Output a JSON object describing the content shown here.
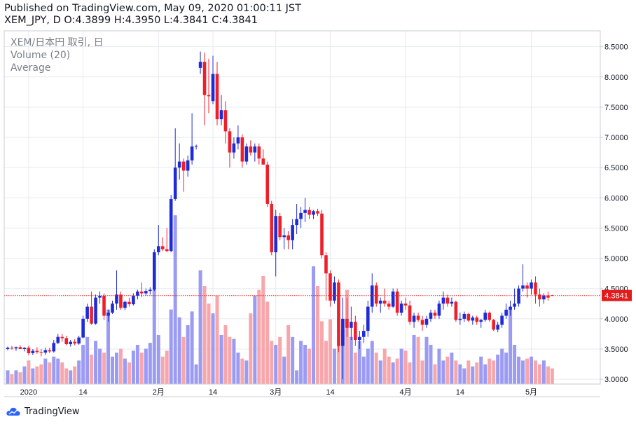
{
  "header": {
    "line1": "Published on TradingView.com, May 09, 2020 01:00:11 JST",
    "line2": "XEM_JPY, D O:4.3899 H:4.3950 L:4.3841 C:4.3841"
  },
  "legend": {
    "symbol": "XEM/日本円 取引, 日",
    "volume": "Volume (20)",
    "average": "Average"
  },
  "footer": {
    "brand": "TradingView"
  },
  "colors": {
    "up": "#1e2bd6",
    "down": "#ef1f2a",
    "vol_up": "#9b9bf4",
    "vol_down": "#f7a6ab",
    "grid": "#e6eaf0",
    "last_price": "#e21c1c"
  },
  "chart_data": {
    "type": "candlestick",
    "ylim": [
      2.92,
      8.6
    ],
    "yticks": [
      "8.5000",
      "8.0000",
      "7.5000",
      "7.0000",
      "6.5000",
      "6.0000",
      "5.5000",
      "5.0000",
      "4.5000",
      "4.0000",
      "3.5000",
      "3.0000"
    ],
    "xticks": [
      {
        "label": "2020",
        "index": 5
      },
      {
        "label": "14",
        "index": 18
      },
      {
        "label": "2月",
        "index": 36
      },
      {
        "label": "14",
        "index": 49
      },
      {
        "label": "3月",
        "index": 64
      },
      {
        "label": "14",
        "index": 77
      },
      {
        "label": "4月",
        "index": 95
      },
      {
        "label": "14",
        "index": 108
      },
      {
        "label": "5月",
        "index": 125
      }
    ],
    "last_price": "4.3841",
    "candles": [
      {
        "o": 3.5,
        "h": 3.54,
        "l": 3.48,
        "c": 3.52
      },
      {
        "o": 3.52,
        "h": 3.55,
        "l": 3.49,
        "c": 3.51
      },
      {
        "o": 3.51,
        "h": 3.54,
        "l": 3.47,
        "c": 3.53
      },
      {
        "o": 3.53,
        "h": 3.56,
        "l": 3.5,
        "c": 3.5
      },
      {
        "o": 3.5,
        "h": 3.53,
        "l": 3.46,
        "c": 3.52
      },
      {
        "o": 3.52,
        "h": 3.55,
        "l": 3.4,
        "c": 3.43
      },
      {
        "o": 3.43,
        "h": 3.5,
        "l": 3.4,
        "c": 3.47
      },
      {
        "o": 3.47,
        "h": 3.53,
        "l": 3.42,
        "c": 3.45
      },
      {
        "o": 3.45,
        "h": 3.5,
        "l": 3.38,
        "c": 3.44
      },
      {
        "o": 3.44,
        "h": 3.52,
        "l": 3.4,
        "c": 3.48
      },
      {
        "o": 3.48,
        "h": 3.52,
        "l": 3.43,
        "c": 3.46
      },
      {
        "o": 3.46,
        "h": 3.65,
        "l": 3.44,
        "c": 3.6
      },
      {
        "o": 3.6,
        "h": 3.75,
        "l": 3.58,
        "c": 3.7
      },
      {
        "o": 3.7,
        "h": 3.75,
        "l": 3.62,
        "c": 3.68
      },
      {
        "o": 3.68,
        "h": 3.72,
        "l": 3.56,
        "c": 3.58
      },
      {
        "o": 3.58,
        "h": 3.65,
        "l": 3.54,
        "c": 3.62
      },
      {
        "o": 3.62,
        "h": 3.66,
        "l": 3.56,
        "c": 3.59
      },
      {
        "o": 3.59,
        "h": 3.72,
        "l": 3.57,
        "c": 3.69
      },
      {
        "o": 3.69,
        "h": 4.05,
        "l": 3.68,
        "c": 4.0
      },
      {
        "o": 4.0,
        "h": 4.25,
        "l": 3.95,
        "c": 4.2
      },
      {
        "o": 4.2,
        "h": 4.45,
        "l": 3.9,
        "c": 3.92
      },
      {
        "o": 3.92,
        "h": 4.4,
        "l": 3.9,
        "c": 4.35
      },
      {
        "o": 4.35,
        "h": 4.45,
        "l": 4.25,
        "c": 4.38
      },
      {
        "o": 4.38,
        "h": 4.42,
        "l": 3.98,
        "c": 4.05
      },
      {
        "o": 4.05,
        "h": 4.15,
        "l": 3.95,
        "c": 4.1
      },
      {
        "o": 4.1,
        "h": 4.3,
        "l": 4.08,
        "c": 4.25
      },
      {
        "o": 4.25,
        "h": 4.8,
        "l": 4.15,
        "c": 4.4
      },
      {
        "o": 4.4,
        "h": 4.45,
        "l": 4.15,
        "c": 4.18
      },
      {
        "o": 4.18,
        "h": 4.3,
        "l": 4.14,
        "c": 4.28
      },
      {
        "o": 4.28,
        "h": 4.35,
        "l": 4.2,
        "c": 4.24
      },
      {
        "o": 4.24,
        "h": 4.42,
        "l": 4.22,
        "c": 4.38
      },
      {
        "o": 4.38,
        "h": 4.48,
        "l": 4.32,
        "c": 4.45
      },
      {
        "o": 4.45,
        "h": 4.6,
        "l": 4.36,
        "c": 4.42
      },
      {
        "o": 4.42,
        "h": 4.5,
        "l": 4.38,
        "c": 4.46
      },
      {
        "o": 4.46,
        "h": 4.52,
        "l": 4.4,
        "c": 4.48
      },
      {
        "o": 4.48,
        "h": 5.15,
        "l": 4.46,
        "c": 5.1
      },
      {
        "o": 5.1,
        "h": 5.55,
        "l": 5.05,
        "c": 5.2
      },
      {
        "o": 5.2,
        "h": 5.35,
        "l": 5.12,
        "c": 5.15
      },
      {
        "o": 5.15,
        "h": 5.5,
        "l": 5.1,
        "c": 5.12
      },
      {
        "o": 5.12,
        "h": 6.05,
        "l": 5.1,
        "c": 5.98
      },
      {
        "o": 5.98,
        "h": 7.15,
        "l": 5.95,
        "c": 6.5
      },
      {
        "o": 6.5,
        "h": 6.9,
        "l": 6.3,
        "c": 6.6
      },
      {
        "o": 6.6,
        "h": 6.65,
        "l": 6.1,
        "c": 6.45
      },
      {
        "o": 6.45,
        "h": 6.7,
        "l": 6.35,
        "c": 6.62
      },
      {
        "o": 6.62,
        "h": 7.4,
        "l": 6.55,
        "c": 6.85
      },
      {
        "o": 6.85,
        "h": 6.88,
        "l": 6.8,
        "c": 6.86
      },
      {
        "o": 8.15,
        "h": 8.42,
        "l": 8.05,
        "c": 8.25
      },
      {
        "o": 8.25,
        "h": 8.4,
        "l": 7.2,
        "c": 7.7
      },
      {
        "o": 7.7,
        "h": 8.3,
        "l": 7.4,
        "c": 7.68
      },
      {
        "o": 7.6,
        "h": 8.35,
        "l": 7.55,
        "c": 8.05
      },
      {
        "o": 8.05,
        "h": 8.25,
        "l": 7.2,
        "c": 7.3
      },
      {
        "o": 7.3,
        "h": 7.7,
        "l": 7.2,
        "c": 7.45
      },
      {
        "o": 7.45,
        "h": 7.6,
        "l": 6.9,
        "c": 7.1
      },
      {
        "o": 7.1,
        "h": 7.15,
        "l": 6.5,
        "c": 6.75
      },
      {
        "o": 6.75,
        "h": 7.0,
        "l": 6.65,
        "c": 6.9
      },
      {
        "o": 6.9,
        "h": 7.2,
        "l": 6.8,
        "c": 7.0
      },
      {
        "o": 7.0,
        "h": 7.05,
        "l": 6.5,
        "c": 6.6
      },
      {
        "o": 6.6,
        "h": 6.9,
        "l": 6.55,
        "c": 6.85
      },
      {
        "o": 6.85,
        "h": 6.95,
        "l": 6.7,
        "c": 6.75
      },
      {
        "o": 6.75,
        "h": 6.9,
        "l": 6.6,
        "c": 6.85
      },
      {
        "o": 6.85,
        "h": 6.9,
        "l": 6.55,
        "c": 6.65
      },
      {
        "o": 6.65,
        "h": 6.8,
        "l": 6.55,
        "c": 6.55
      },
      {
        "o": 6.55,
        "h": 6.6,
        "l": 5.85,
        "c": 5.9
      },
      {
        "o": 5.9,
        "h": 5.95,
        "l": 5.05,
        "c": 5.1
      },
      {
        "o": 5.1,
        "h": 5.8,
        "l": 4.7,
        "c": 5.7
      },
      {
        "o": 5.7,
        "h": 5.75,
        "l": 5.3,
        "c": 5.35
      },
      {
        "o": 5.35,
        "h": 5.5,
        "l": 5.15,
        "c": 5.38
      },
      {
        "o": 5.38,
        "h": 5.45,
        "l": 5.15,
        "c": 5.3
      },
      {
        "o": 5.3,
        "h": 5.65,
        "l": 5.15,
        "c": 5.55
      },
      {
        "o": 5.55,
        "h": 5.9,
        "l": 5.4,
        "c": 5.65
      },
      {
        "o": 5.65,
        "h": 5.85,
        "l": 5.5,
        "c": 5.75
      },
      {
        "o": 5.75,
        "h": 6.0,
        "l": 5.6,
        "c": 5.8
      },
      {
        "o": 5.8,
        "h": 5.85,
        "l": 5.65,
        "c": 5.72
      },
      {
        "o": 5.72,
        "h": 5.8,
        "l": 5.65,
        "c": 5.78
      },
      {
        "o": 5.78,
        "h": 5.82,
        "l": 5.7,
        "c": 5.74
      },
      {
        "o": 5.74,
        "h": 5.8,
        "l": 5.0,
        "c": 5.05
      },
      {
        "o": 5.05,
        "h": 5.1,
        "l": 4.3,
        "c": 4.75
      },
      {
        "o": 4.75,
        "h": 4.8,
        "l": 4.2,
        "c": 4.3
      },
      {
        "o": 4.3,
        "h": 4.7,
        "l": 4.25,
        "c": 4.6
      },
      {
        "o": 4.6,
        "h": 4.65,
        "l": 3.45,
        "c": 3.55
      },
      {
        "o": 3.55,
        "h": 4.35,
        "l": 3.0,
        "c": 4.0
      },
      {
        "o": 4.0,
        "h": 4.35,
        "l": 3.7,
        "c": 3.85
      },
      {
        "o": 3.85,
        "h": 4.2,
        "l": 3.65,
        "c": 3.95
      },
      {
        "o": 3.95,
        "h": 4.05,
        "l": 3.55,
        "c": 3.65
      },
      {
        "o": 3.65,
        "h": 3.8,
        "l": 3.5,
        "c": 3.7
      },
      {
        "o": 3.7,
        "h": 3.9,
        "l": 3.6,
        "c": 3.8
      },
      {
        "o": 3.8,
        "h": 4.3,
        "l": 3.7,
        "c": 4.2
      },
      {
        "o": 4.2,
        "h": 4.75,
        "l": 4.1,
        "c": 4.55
      },
      {
        "o": 4.55,
        "h": 4.6,
        "l": 4.2,
        "c": 4.25
      },
      {
        "o": 4.25,
        "h": 4.35,
        "l": 4.1,
        "c": 4.3
      },
      {
        "o": 4.3,
        "h": 4.5,
        "l": 4.2,
        "c": 4.25
      },
      {
        "o": 4.25,
        "h": 4.3,
        "l": 4.15,
        "c": 4.2
      },
      {
        "o": 4.2,
        "h": 4.5,
        "l": 4.18,
        "c": 4.45
      },
      {
        "o": 4.45,
        "h": 4.5,
        "l": 4.05,
        "c": 4.1
      },
      {
        "o": 4.1,
        "h": 4.3,
        "l": 4.05,
        "c": 4.25
      },
      {
        "o": 4.25,
        "h": 4.35,
        "l": 4.15,
        "c": 4.22
      },
      {
        "o": 4.22,
        "h": 4.3,
        "l": 3.9,
        "c": 3.95
      },
      {
        "o": 3.95,
        "h": 4.1,
        "l": 3.85,
        "c": 4.05
      },
      {
        "o": 4.05,
        "h": 4.1,
        "l": 3.95,
        "c": 3.98
      },
      {
        "o": 3.98,
        "h": 4.05,
        "l": 3.8,
        "c": 3.9
      },
      {
        "o": 3.9,
        "h": 4.05,
        "l": 3.85,
        "c": 4.0
      },
      {
        "o": 4.0,
        "h": 4.15,
        "l": 3.95,
        "c": 4.1
      },
      {
        "o": 4.1,
        "h": 4.15,
        "l": 4.0,
        "c": 4.05
      },
      {
        "o": 4.05,
        "h": 4.3,
        "l": 4.0,
        "c": 4.25
      },
      {
        "o": 4.25,
        "h": 4.45,
        "l": 4.15,
        "c": 4.35
      },
      {
        "o": 4.35,
        "h": 4.4,
        "l": 4.2,
        "c": 4.25
      },
      {
        "o": 4.25,
        "h": 4.35,
        "l": 4.2,
        "c": 4.28
      },
      {
        "o": 4.28,
        "h": 4.3,
        "l": 3.95,
        "c": 3.98
      },
      {
        "o": 3.98,
        "h": 4.1,
        "l": 3.9,
        "c": 4.0
      },
      {
        "o": 4.0,
        "h": 4.12,
        "l": 3.95,
        "c": 4.08
      },
      {
        "o": 4.08,
        "h": 4.1,
        "l": 3.95,
        "c": 3.97
      },
      {
        "o": 3.97,
        "h": 4.05,
        "l": 3.9,
        "c": 4.02
      },
      {
        "o": 4.02,
        "h": 4.05,
        "l": 3.9,
        "c": 3.95
      },
      {
        "o": 3.95,
        "h": 4.0,
        "l": 3.85,
        "c": 3.98
      },
      {
        "o": 3.98,
        "h": 4.15,
        "l": 3.95,
        "c": 4.1
      },
      {
        "o": 4.1,
        "h": 4.12,
        "l": 3.95,
        "c": 3.98
      },
      {
        "o": 3.98,
        "h": 4.0,
        "l": 3.8,
        "c": 3.82
      },
      {
        "o": 3.82,
        "h": 3.95,
        "l": 3.78,
        "c": 3.9
      },
      {
        "o": 3.9,
        "h": 4.1,
        "l": 3.85,
        "c": 4.05
      },
      {
        "o": 4.05,
        "h": 4.25,
        "l": 4.0,
        "c": 4.15
      },
      {
        "o": 4.15,
        "h": 4.3,
        "l": 4.05,
        "c": 4.2
      },
      {
        "o": 4.2,
        "h": 4.5,
        "l": 4.15,
        "c": 4.25
      },
      {
        "o": 4.25,
        "h": 4.55,
        "l": 4.2,
        "c": 4.5
      },
      {
        "o": 4.5,
        "h": 4.9,
        "l": 4.45,
        "c": 4.55
      },
      {
        "o": 4.55,
        "h": 4.6,
        "l": 4.35,
        "c": 4.5
      },
      {
        "o": 4.5,
        "h": 4.65,
        "l": 4.4,
        "c": 4.6
      },
      {
        "o": 4.6,
        "h": 4.7,
        "l": 4.25,
        "c": 4.4
      },
      {
        "o": 4.4,
        "h": 4.5,
        "l": 4.2,
        "c": 4.32
      },
      {
        "o": 4.32,
        "h": 4.42,
        "l": 4.25,
        "c": 4.38
      },
      {
        "o": 4.38,
        "h": 4.45,
        "l": 4.3,
        "c": 4.35
      },
      {
        "o": 4.3899,
        "h": 4.395,
        "l": 4.3841,
        "c": 4.3841
      }
    ],
    "volume": [
      7,
      5,
      7,
      6,
      9,
      12,
      8,
      9,
      10,
      13,
      11,
      14,
      13,
      11,
      8,
      7,
      9,
      12,
      20,
      24,
      15,
      22,
      18,
      16,
      38,
      14,
      16,
      18,
      13,
      11,
      17,
      20,
      16,
      18,
      21,
      48,
      25,
      14,
      17,
      38,
      86,
      34,
      24,
      30,
      37,
      10,
      58,
      50,
      41,
      36,
      45,
      25,
      30,
      24,
      23,
      16,
      13,
      12,
      36,
      45,
      48,
      55,
      42,
      22,
      20,
      24,
      14,
      30,
      24,
      7,
      22,
      20,
      18,
      60,
      50,
      32,
      22,
      33,
      18,
      20,
      28,
      48,
      24,
      16,
      22,
      14,
      18,
      22,
      16,
      12,
      18,
      14,
      11,
      13,
      18,
      17,
      11,
      25,
      24,
      12,
      24,
      20,
      10,
      18,
      12,
      14,
      16,
      12,
      10,
      8,
      12,
      9,
      11,
      14,
      10,
      13,
      12,
      15,
      18,
      16,
      38,
      20,
      14,
      12,
      13,
      14,
      12,
      10,
      12,
      9,
      8
    ],
    "vol_ylim": [
      0,
      180
    ]
  }
}
